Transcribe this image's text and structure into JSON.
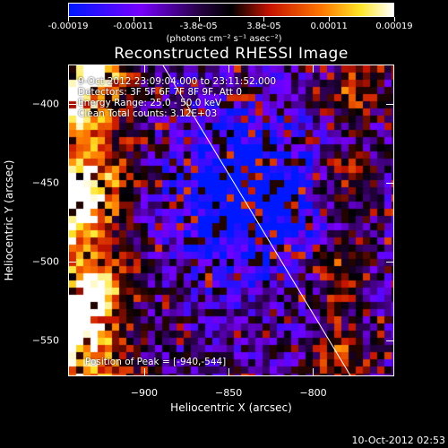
{
  "colorbar": {
    "tick_labels": [
      "-0.00019",
      "-0.00011",
      "-3.8e-05",
      "3.8e-05",
      "0.00011",
      "0.00019"
    ],
    "units_label": "(photons cm⁻² s⁻¹ asec⁻²)"
  },
  "image": {
    "title": "Reconstructed RHESSI Image",
    "info_lines": [
      "9-Oct-2012 23:09:04.000 to 23:11:52.000",
      "Detectors: 3F 5F 6F 7F 8F 9F, Att 0",
      "Energy Range: 25.0 - 50.0 keV",
      "Clean    Total counts: 3.12E+03"
    ],
    "peak_label": "Position of Peak = [-940,-544]",
    "x_axis": {
      "label": "Heliocentric X (arcsec)",
      "range": [
        -945,
        -752
      ],
      "ticks": [
        -900,
        -850,
        -800
      ]
    },
    "y_axis": {
      "label": "Heliocentric Y (arcsec)",
      "range": [
        -573,
        -375
      ],
      "ticks": [
        -400,
        -450,
        -500,
        -550
      ]
    },
    "colors": {
      "low": "#0018ff",
      "mid_low": "#7a00ff",
      "mid": "#000000",
      "mid_high": "#c81a00",
      "high": "#ffffff"
    }
  },
  "footer": {
    "timestamp": "10-Oct-2012 02:53"
  }
}
